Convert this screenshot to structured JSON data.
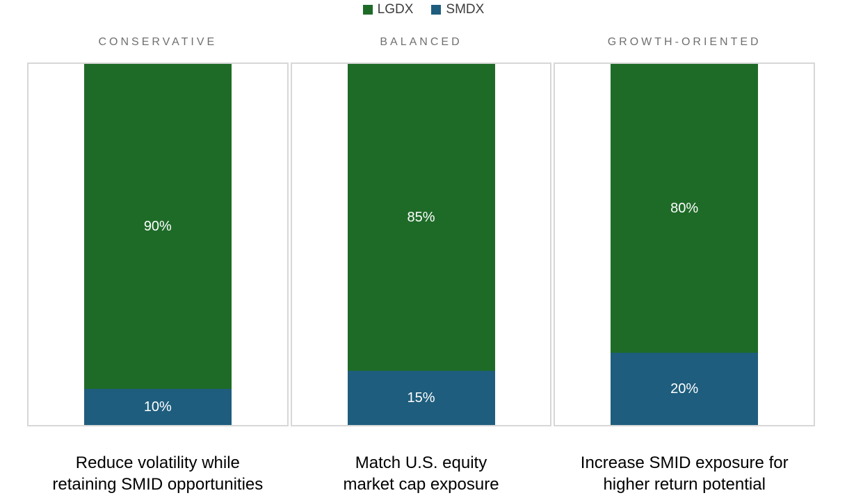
{
  "colors": {
    "lgdx_green": "#1e6b28",
    "smdx_blue": "#1e5d7d",
    "panel_border": "#d7d7d7",
    "header_text": "#6f6f6f",
    "legend_text": "#3d3d3d",
    "value_label_text": "#ffffff",
    "caption_text": "#000000"
  },
  "legend": {
    "items": [
      {
        "label": "LGDX",
        "color": "#1e6b28"
      },
      {
        "label": "SMDX",
        "color": "#1e5d7d"
      }
    ]
  },
  "chart_data": {
    "type": "bar",
    "stacked": true,
    "orientation": "vertical",
    "grid": false,
    "legend_position": "top",
    "ylim": [
      0,
      100
    ],
    "unit": "%",
    "categories": [
      "CONSERVATIVE",
      "BALANCED",
      "GROWTH-ORIENTED"
    ],
    "series": [
      {
        "name": "LGDX",
        "color": "#1e6b28",
        "values": [
          90,
          85,
          80
        ],
        "labels": [
          "90%",
          "85%",
          "80%"
        ]
      },
      {
        "name": "SMDX",
        "color": "#1e5d7d",
        "values": [
          10,
          15,
          20
        ],
        "labels": [
          "10%",
          "15%",
          "20%"
        ]
      }
    ],
    "captions": [
      {
        "line1": "Reduce volatility while",
        "line2": "retaining SMID opportunities"
      },
      {
        "line1": "Match U.S. equity",
        "line2": "market cap exposure"
      },
      {
        "line1": "Increase SMID exposure for",
        "line2": "higher return potential"
      }
    ]
  }
}
